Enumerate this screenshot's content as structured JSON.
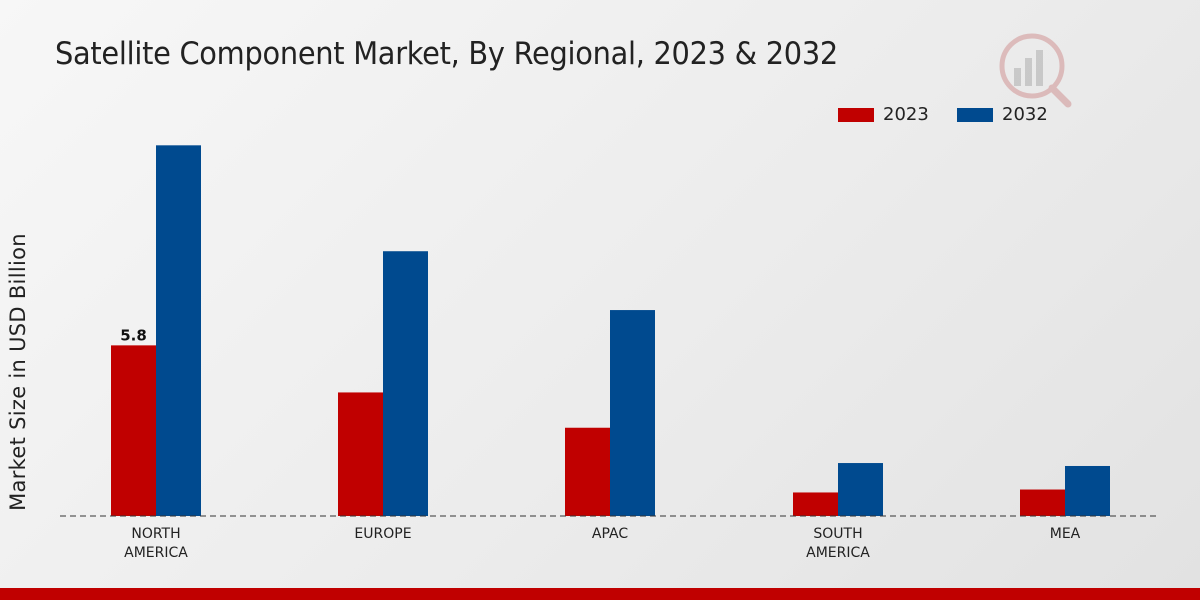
{
  "title": "Satellite Component Market, By Regional, 2023 & 2032",
  "colors": {
    "series_2023": "#c00000",
    "series_2032": "#004a8f",
    "bottom_bar": "#c00000"
  },
  "logo": {
    "icon": "chart-magnifier-logo-icon"
  },
  "chart_data": {
    "type": "bar",
    "title": "Satellite Component Market, By Regional, 2023 & 2032",
    "xlabel": "",
    "ylabel": "Market Size in USD Billion",
    "ylim": [
      0,
      15.5
    ],
    "grid": false,
    "legend_position": "top-right",
    "categories": [
      [
        "NORTH",
        "AMERICA"
      ],
      [
        "EUROPE"
      ],
      [
        "APAC"
      ],
      [
        "SOUTH",
        "AMERICA"
      ],
      [
        "MEA"
      ]
    ],
    "series": [
      {
        "name": "2023",
        "color": "#c00000",
        "values": [
          5.8,
          4.2,
          3.0,
          0.8,
          0.9
        ]
      },
      {
        "name": "2032",
        "color": "#004a8f",
        "values": [
          12.6,
          9.0,
          7.0,
          1.8,
          1.7
        ]
      }
    ],
    "data_labels": [
      {
        "series": 0,
        "index": 0,
        "text": "5.8"
      }
    ]
  }
}
